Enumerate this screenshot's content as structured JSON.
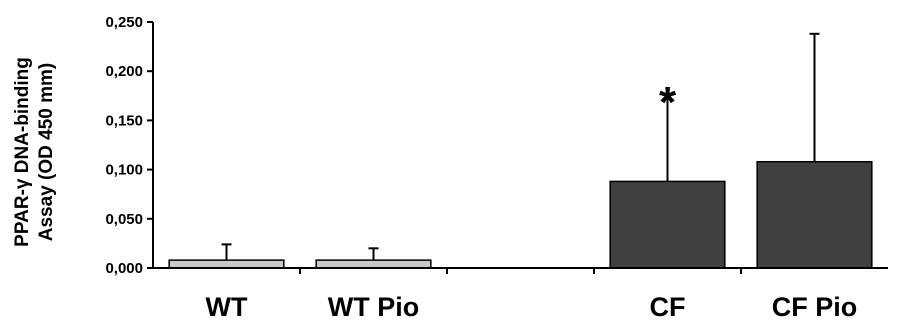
{
  "chart_data": {
    "type": "bar",
    "ylabel_lines": [
      "PPAR-γ DNA-binding",
      "Assay (OD 450 mm)"
    ],
    "yticks": [
      "0,000",
      "0,050",
      "0,100",
      "0,150",
      "0,200",
      "0,250"
    ],
    "ylim": [
      0,
      0.25
    ],
    "categories": [
      "WT",
      "WT Pio",
      "",
      "CF",
      "CF Pio"
    ],
    "values": [
      0.008,
      0.008,
      null,
      0.088,
      0.108
    ],
    "error_upper": [
      0.024,
      0.02,
      null,
      0.176,
      0.238
    ],
    "annotations": [
      {
        "text": "*",
        "category": "CF"
      }
    ],
    "colors": {
      "WT": "#c8c8c8",
      "WT Pio": "#c8c8c8",
      "CF": "#404040",
      "CF Pio": "#404040"
    },
    "grid": false,
    "legend": "none"
  }
}
